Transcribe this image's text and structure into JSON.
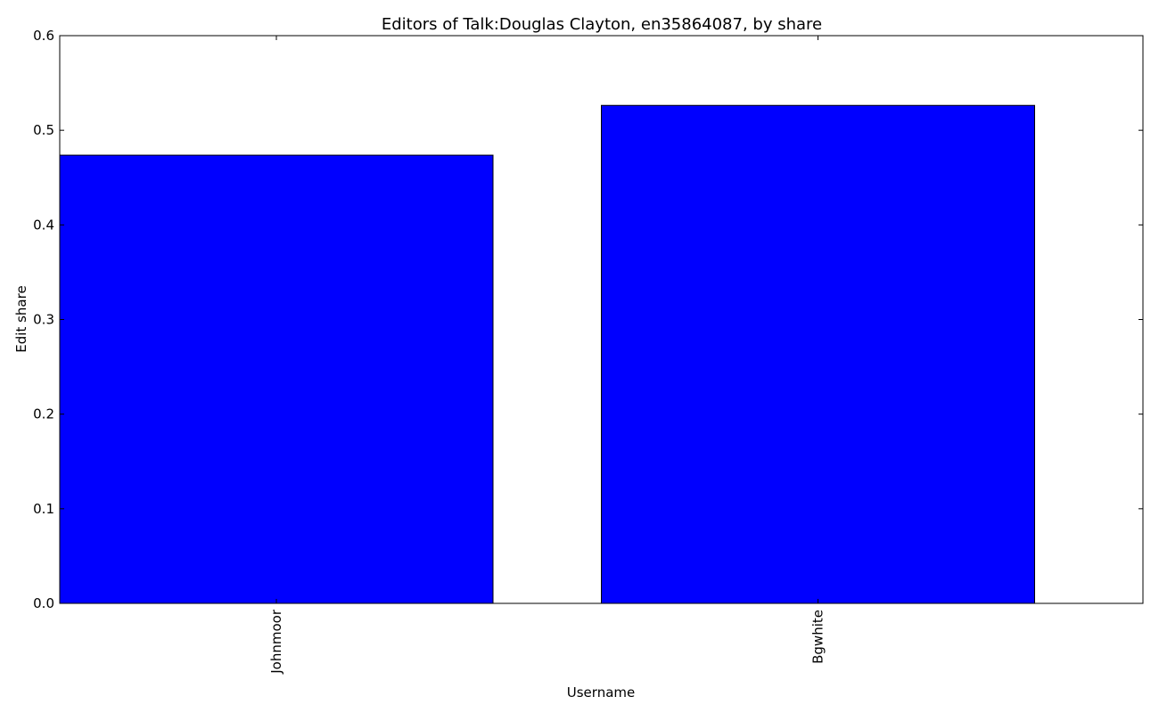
{
  "chart_data": {
    "type": "bar",
    "title": "Editors of Talk:Douglas Clayton, en35864087, by share",
    "xlabel": "Username",
    "ylabel": "Edit share",
    "categories": [
      "Johnmoor",
      "Bgwhite"
    ],
    "values": [
      0.4737,
      0.5263
    ],
    "ylim": [
      0,
      0.6
    ],
    "yticks": [
      "0.0",
      "0.1",
      "0.2",
      "0.3",
      "0.4",
      "0.5",
      "0.6"
    ],
    "bar_color": "#0000ff",
    "edge_color": "#000000",
    "grid": false,
    "legend": "none"
  }
}
